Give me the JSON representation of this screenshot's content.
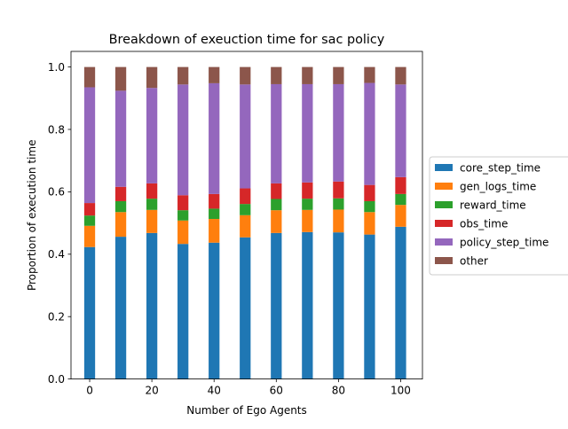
{
  "chart_data": {
    "type": "bar",
    "stacked": true,
    "title": "Breakdown of exeuction time for sac policy",
    "xlabel": "Number of Ego Agents",
    "ylabel": "Proportion of execution time",
    "x": [
      0,
      10,
      20,
      30,
      40,
      50,
      60,
      70,
      80,
      90,
      100
    ],
    "xlim": [
      -6,
      107
    ],
    "ylim": [
      0,
      1.05
    ],
    "xticks": [
      0,
      20,
      40,
      60,
      80,
      100
    ],
    "yticks": [
      0.0,
      0.2,
      0.4,
      0.6,
      0.8,
      1.0
    ],
    "xtick_labels": [
      "0",
      "20",
      "40",
      "60",
      "80",
      "100"
    ],
    "ytick_labels": [
      "0.0",
      "0.2",
      "0.4",
      "0.6",
      "0.8",
      "1.0"
    ],
    "grid": false,
    "legend_position": "right",
    "series": [
      {
        "name": "core_step_time",
        "color": "#1f77b4",
        "values": [
          0.423,
          0.456,
          0.468,
          0.433,
          0.437,
          0.454,
          0.468,
          0.471,
          0.47,
          0.463,
          0.488
        ]
      },
      {
        "name": "gen_logs_time",
        "color": "#ff7f0e",
        "values": [
          0.068,
          0.079,
          0.074,
          0.075,
          0.076,
          0.071,
          0.073,
          0.071,
          0.073,
          0.072,
          0.07
        ]
      },
      {
        "name": "reward_time",
        "color": "#2ca02c",
        "values": [
          0.033,
          0.035,
          0.036,
          0.033,
          0.033,
          0.036,
          0.036,
          0.036,
          0.036,
          0.035,
          0.035
        ]
      },
      {
        "name": "obs_time",
        "color": "#d62728",
        "values": [
          0.04,
          0.046,
          0.049,
          0.048,
          0.047,
          0.05,
          0.05,
          0.052,
          0.054,
          0.052,
          0.054
        ]
      },
      {
        "name": "policy_step_time",
        "color": "#9467bd",
        "values": [
          0.371,
          0.308,
          0.306,
          0.355,
          0.355,
          0.333,
          0.318,
          0.315,
          0.312,
          0.327,
          0.297
        ]
      },
      {
        "name": "other",
        "color": "#8c564b",
        "values": [
          0.065,
          0.076,
          0.067,
          0.056,
          0.052,
          0.056,
          0.055,
          0.055,
          0.055,
          0.051,
          0.056
        ]
      }
    ]
  }
}
